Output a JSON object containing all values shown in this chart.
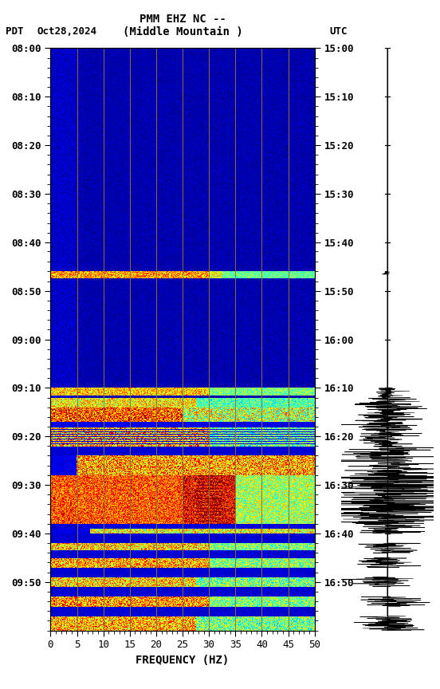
{
  "title_line1": "PMM EHZ NC --",
  "title_line2": "(Middle Mountain )",
  "date_label": "Oct28,2024",
  "pdt_label": "PDT",
  "utc_label": "UTC",
  "freq_label": "FREQUENCY (HZ)",
  "freq_min": 0,
  "freq_max": 50,
  "pdt_ticks": [
    "08:00",
    "08:10",
    "08:20",
    "08:30",
    "08:40",
    "08:50",
    "09:00",
    "09:10",
    "09:20",
    "09:30",
    "09:40",
    "09:50"
  ],
  "utc_ticks": [
    "15:00",
    "15:10",
    "15:20",
    "15:30",
    "15:40",
    "15:50",
    "16:00",
    "16:10",
    "16:20",
    "16:30",
    "16:40",
    "16:50"
  ],
  "fig_width": 5.52,
  "fig_height": 8.64,
  "dpi": 100,
  "total_minutes": 120,
  "n_time_rows": 720,
  "n_freq_cols": 300,
  "vline_color": "#8B7536",
  "vline_positions": [
    5,
    10,
    15,
    20,
    25,
    30,
    35,
    40,
    45
  ]
}
